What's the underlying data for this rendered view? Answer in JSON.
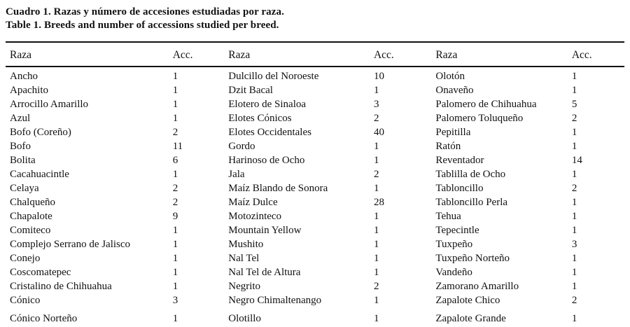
{
  "page": {
    "title_es": "Cuadro 1. Razas y número de accesiones estudiadas por raza.",
    "title_en": "Table 1. Breeds and number of accessions studied per breed."
  },
  "table": {
    "headers": [
      "Raza",
      "Acc.",
      "Raza",
      "Acc.",
      "Raza",
      "Acc."
    ],
    "rows": [
      {
        "raza1": "Ancho",
        "acc1": "1",
        "raza2": "Dulcillo del Noroeste",
        "acc2": "10",
        "raza3": "Olotón",
        "acc3": "1"
      },
      {
        "raza1": "Apachito",
        "acc1": "1",
        "raza2": "Dzit Bacal",
        "acc2": "1",
        "raza3": "Onaveño",
        "acc3": "1"
      },
      {
        "raza1": "Arrocillo Amarillo",
        "acc1": "1",
        "raza2": "Elotero de Sinaloa",
        "acc2": "3",
        "raza3": "Palomero de Chihuahua",
        "acc3": "5"
      },
      {
        "raza1": "Azul",
        "acc1": "1",
        "raza2": "Elotes Cónicos",
        "acc2": "2",
        "raza3": "Palomero Toluqueño",
        "acc3": "2"
      },
      {
        "raza1": "Bofo (Coreño)",
        "acc1": "2",
        "raza2": "Elotes Occidentales",
        "acc2": "40",
        "raza3": "Pepitilla",
        "acc3": "1"
      },
      {
        "raza1": "Bofo",
        "acc1": "11",
        "raza2": "Gordo",
        "acc2": "1",
        "raza3": "Ratón",
        "acc3": "1"
      },
      {
        "raza1": "Bolita",
        "acc1": "6",
        "raza2": "Harinoso de Ocho",
        "acc2": "1",
        "raza3": "Reventador",
        "acc3": "14"
      },
      {
        "raza1": "Cacahuacintle",
        "acc1": "1",
        "raza2": "Jala",
        "acc2": "2",
        "raza3": "Tablilla de Ocho",
        "acc3": "1"
      },
      {
        "raza1": "Celaya",
        "acc1": "2",
        "raza2": "Maíz Blando de Sonora",
        "acc2": "1",
        "raza3": "Tabloncillo",
        "acc3": "2"
      },
      {
        "raza1": "Chalqueño",
        "acc1": "2",
        "raza2": "Maíz Dulce",
        "acc2": "28",
        "raza3": "Tabloncillo Perla",
        "acc3": "1"
      },
      {
        "raza1": "Chapalote",
        "acc1": "9",
        "raza2": "Motozinteco",
        "acc2": "1",
        "raza3": "Tehua",
        "acc3": "1"
      },
      {
        "raza1": "Comiteco",
        "acc1": "1",
        "raza2": "Mountain Yellow",
        "acc2": "1",
        "raza3": "Tepecintle",
        "acc3": "1"
      },
      {
        "raza1": "Complejo Serrano de Jalisco",
        "acc1": "1",
        "raza2": "Mushito",
        "acc2": "1",
        "raza3": "Tuxpeño",
        "acc3": "3"
      },
      {
        "raza1": "Conejo",
        "acc1": "1",
        "raza2": "Nal Tel",
        "acc2": "1",
        "raza3": "Tuxpeño Norteño",
        "acc3": "1"
      },
      {
        "raza1": "Coscomatepec",
        "acc1": "1",
        "raza2": "Nal Tel de Altura",
        "acc2": "1",
        "raza3": "Vandeño",
        "acc3": "1"
      },
      {
        "raza1": "Cristalino de Chihuahua",
        "acc1": "1",
        "raza2": "Negrito",
        "acc2": "2",
        "raza3": "Zamorano Amarillo",
        "acc3": "1"
      },
      {
        "raza1": "Cónico",
        "acc1": "3",
        "raza2": "Negro Chimaltenango",
        "acc2": "1",
        "raza3": "Zapalote Chico",
        "acc3": "2"
      },
      {
        "raza1": "Cónico Norteño",
        "acc1": "1",
        "raza2": "Olotillo",
        "acc2": "1",
        "raza3": "Zapalote Grande",
        "acc3": "1"
      }
    ]
  }
}
